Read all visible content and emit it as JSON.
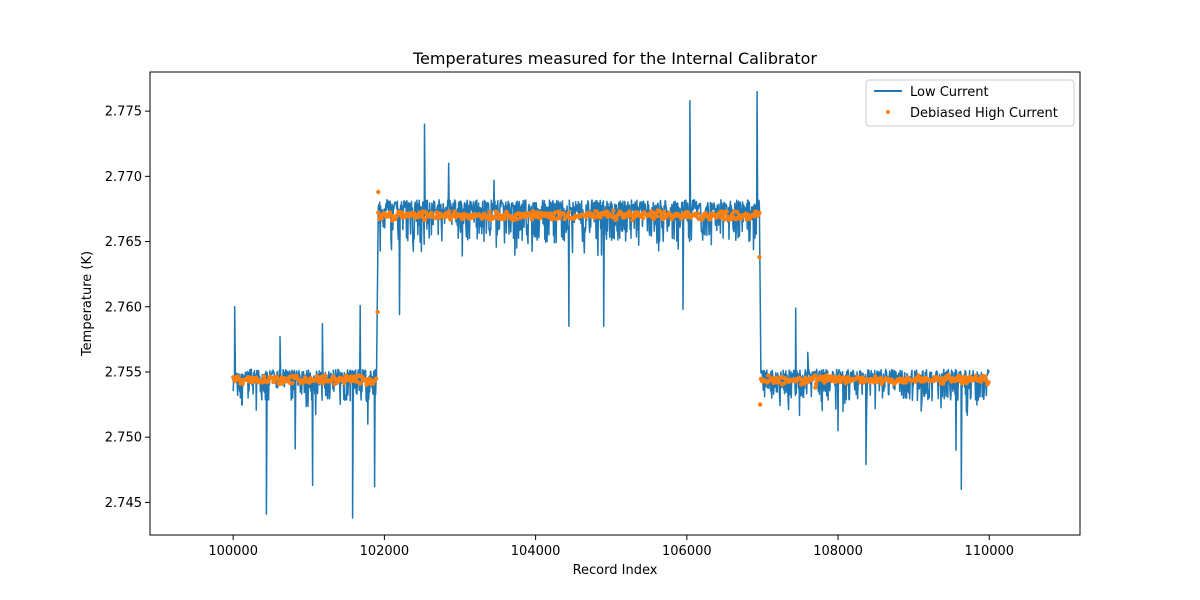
{
  "chart_data": {
    "type": "line",
    "title": "Temperatures measured for the Internal Calibrator",
    "xlabel": "Record Index",
    "ylabel": "Temperature (K)",
    "xlim": [
      98900,
      111200
    ],
    "ylim": [
      2.7425,
      2.778
    ],
    "x_ticks": [
      100000,
      102000,
      104000,
      106000,
      108000,
      110000
    ],
    "x_tick_labels": [
      "100000",
      "102000",
      "104000",
      "106000",
      "108000",
      "110000"
    ],
    "y_ticks": [
      2.745,
      2.75,
      2.755,
      2.76,
      2.765,
      2.77,
      2.775
    ],
    "y_tick_labels": [
      "2.745",
      "2.750",
      "2.755",
      "2.760",
      "2.765",
      "2.770",
      "2.775"
    ],
    "grid": false,
    "legend_position": "top-right",
    "series": [
      {
        "name": "Low Current",
        "kind": "line",
        "color": "#1f77b4",
        "segments": [
          {
            "x_start": 100000,
            "x_end": 101900,
            "center": 2.7543,
            "band_low": 2.7528,
            "band_high": 2.7552
          },
          {
            "x_start": 101920,
            "x_end": 106960,
            "center": 2.7668,
            "band_low": 2.765,
            "band_high": 2.7682
          },
          {
            "x_start": 106980,
            "x_end": 110000,
            "center": 2.7543,
            "band_low": 2.7528,
            "band_high": 2.7552
          }
        ],
        "spikes": [
          {
            "x": 100020,
            "y": 2.76
          },
          {
            "x": 100440,
            "y": 2.7441
          },
          {
            "x": 100620,
            "y": 2.7577
          },
          {
            "x": 100820,
            "y": 2.7491
          },
          {
            "x": 101050,
            "y": 2.7463
          },
          {
            "x": 101180,
            "y": 2.7587
          },
          {
            "x": 101580,
            "y": 2.7438
          },
          {
            "x": 101680,
            "y": 2.7601
          },
          {
            "x": 101780,
            "y": 2.751
          },
          {
            "x": 101870,
            "y": 2.7462
          },
          {
            "x": 101950,
            "y": 2.7677
          },
          {
            "x": 102200,
            "y": 2.7594
          },
          {
            "x": 102530,
            "y": 2.774
          },
          {
            "x": 102850,
            "y": 2.771
          },
          {
            "x": 103450,
            "y": 2.7697
          },
          {
            "x": 103750,
            "y": 2.7645
          },
          {
            "x": 104440,
            "y": 2.7585
          },
          {
            "x": 104900,
            "y": 2.7585
          },
          {
            "x": 105950,
            "y": 2.7598
          },
          {
            "x": 106040,
            "y": 2.7758
          },
          {
            "x": 106930,
            "y": 2.7765
          },
          {
            "x": 107440,
            "y": 2.7599
          },
          {
            "x": 107600,
            "y": 2.7565
          },
          {
            "x": 108000,
            "y": 2.7505
          },
          {
            "x": 108370,
            "y": 2.7479
          },
          {
            "x": 109100,
            "y": 2.752
          },
          {
            "x": 109560,
            "y": 2.749
          },
          {
            "x": 109630,
            "y": 2.746
          }
        ]
      },
      {
        "name": "Debiased High Current",
        "kind": "scatter",
        "color": "#ff7f0e",
        "segments": [
          {
            "x_start": 100000,
            "x_end": 101900,
            "center": 2.7544,
            "spread": 0.0004
          },
          {
            "x_start": 101920,
            "x_end": 106960,
            "center": 2.767,
            "spread": 0.0004
          },
          {
            "x_start": 106980,
            "x_end": 110000,
            "center": 2.7544,
            "spread": 0.0004
          }
        ],
        "outliers": [
          {
            "x": 101910,
            "y": 2.7596
          },
          {
            "x": 101920,
            "y": 2.7688
          },
          {
            "x": 106960,
            "y": 2.7638
          },
          {
            "x": 106970,
            "y": 2.7525
          },
          {
            "x": 107700,
            "y": 2.7538
          }
        ]
      }
    ]
  }
}
